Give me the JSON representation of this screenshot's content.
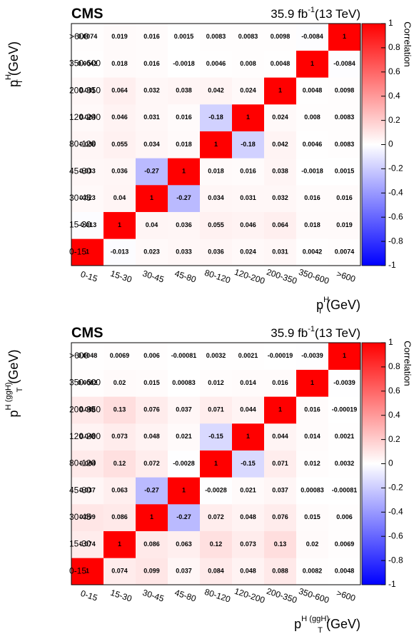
{
  "chart_data": [
    {
      "type": "heatmap",
      "title": "CMS",
      "lumi": {
        "text": "35.9 fb",
        "sup": "-1",
        "energy": "(13 TeV)"
      },
      "x_label": {
        "symbol": "p",
        "sub": "T",
        "sup": "H",
        "unit": "(GeV)"
      },
      "y_label": {
        "symbol": "p",
        "sub": "T",
        "sup": "H",
        "unit": "(GeV)"
      },
      "colorbar_label": "Correlation",
      "categories": [
        "0-15",
        "15-30",
        "30-45",
        "45-80",
        "80-120",
        "120-200",
        "200-350",
        "350-600",
        ">600"
      ],
      "zlim": [
        -1,
        1
      ],
      "zticks": [
        -1,
        -0.8,
        -0.6,
        -0.4,
        -0.2,
        0,
        0.2,
        0.4,
        0.6,
        0.8,
        1
      ],
      "values": [
        [
          1,
          -0.013,
          0.023,
          0.033,
          0.036,
          0.024,
          0.031,
          0.0042,
          0.0074
        ],
        [
          -0.013,
          1,
          0.04,
          0.036,
          0.055,
          0.046,
          0.064,
          0.018,
          0.019
        ],
        [
          0.023,
          0.04,
          1,
          -0.27,
          0.034,
          0.031,
          0.032,
          0.016,
          0.016
        ],
        [
          0.033,
          0.036,
          -0.27,
          1,
          0.018,
          0.016,
          0.038,
          -0.0018,
          0.0015
        ],
        [
          0.036,
          0.055,
          0.034,
          0.018,
          1,
          -0.18,
          0.042,
          0.0046,
          0.0083
        ],
        [
          0.024,
          0.046,
          0.031,
          0.016,
          -0.18,
          1,
          0.024,
          0.008,
          0.0083
        ],
        [
          0.031,
          0.064,
          0.032,
          0.038,
          0.042,
          0.024,
          1,
          0.0048,
          0.0098
        ],
        [
          0.0042,
          0.018,
          0.016,
          -0.0018,
          0.0046,
          0.008,
          0.0048,
          1,
          -0.0084
        ],
        [
          0.0074,
          0.019,
          0.016,
          0.0015,
          0.0083,
          0.0083,
          0.0098,
          -0.0084,
          1
        ]
      ]
    },
    {
      "type": "heatmap",
      "title": "CMS",
      "lumi": {
        "text": "35.9 fb",
        "sup": "-1",
        "energy": "(13 TeV)"
      },
      "x_label": {
        "symbol": "p",
        "sub": "T",
        "sup": "H (ggH)",
        "unit": "(GeV)"
      },
      "y_label": {
        "symbol": "p",
        "sub": "T",
        "sup": "H (ggH)",
        "unit": "(GeV)"
      },
      "colorbar_label": "Correlation",
      "categories": [
        "0-15",
        "15-30",
        "30-45",
        "45-80",
        "80-120",
        "120-200",
        "200-350",
        "350-600",
        ">600"
      ],
      "zlim": [
        -1,
        1
      ],
      "zticks": [
        -1,
        -0.8,
        -0.6,
        -0.4,
        -0.2,
        0,
        0.2,
        0.4,
        0.6,
        0.8,
        1
      ],
      "values": [
        [
          1,
          0.074,
          0.099,
          0.037,
          0.084,
          0.048,
          0.088,
          0.0082,
          0.0048
        ],
        [
          0.074,
          1,
          0.086,
          0.063,
          0.12,
          0.073,
          0.13,
          0.02,
          0.0069
        ],
        [
          0.099,
          0.086,
          1,
          -0.27,
          0.072,
          0.048,
          0.076,
          0.015,
          0.006
        ],
        [
          0.037,
          0.063,
          -0.27,
          1,
          -0.0028,
          0.021,
          0.037,
          0.00083,
          -0.00081
        ],
        [
          0.084,
          0.12,
          0.072,
          -0.0028,
          1,
          -0.15,
          0.071,
          0.012,
          0.0032
        ],
        [
          0.048,
          0.073,
          0.048,
          0.021,
          -0.15,
          1,
          0.044,
          0.014,
          0.0021
        ],
        [
          0.088,
          0.13,
          0.076,
          0.037,
          0.071,
          0.044,
          1,
          0.016,
          -0.00019
        ],
        [
          0.0082,
          0.02,
          0.015,
          0.00083,
          0.012,
          0.014,
          0.016,
          1,
          -0.0039
        ],
        [
          0.0048,
          0.0069,
          0.006,
          -0.00081,
          0.0032,
          0.0021,
          -0.00019,
          -0.0039,
          1
        ]
      ]
    }
  ]
}
